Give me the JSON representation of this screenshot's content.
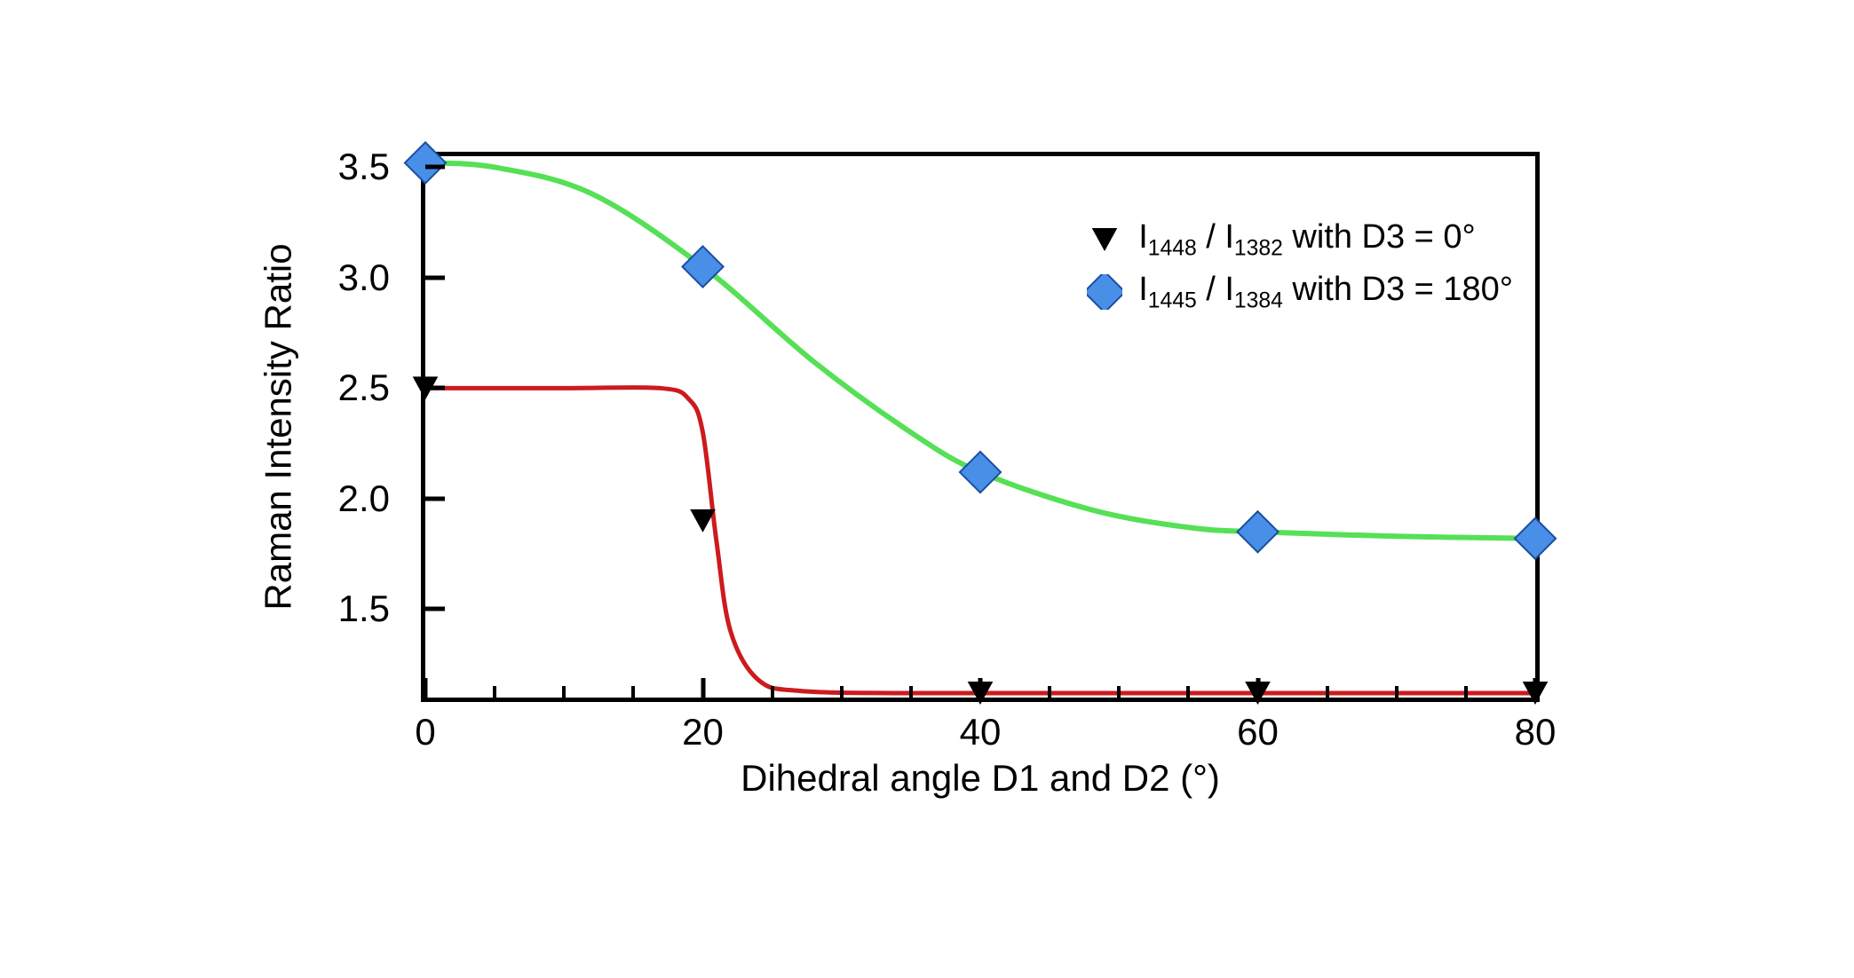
{
  "chart": {
    "type": "line-scatter",
    "background_color": "#ffffff",
    "border_color": "#000000",
    "border_width": 5,
    "x_axis": {
      "label": "Dihedral angle D1 and D2 (°)",
      "min": 0,
      "max": 80,
      "major_ticks": [
        0,
        20,
        40,
        60,
        80
      ],
      "minor_step": 5,
      "label_fontsize": 42,
      "tick_fontsize": 42
    },
    "y_axis": {
      "label": "Raman Intensity Ratio",
      "min": 1.1,
      "max": 3.55,
      "major_ticks": [
        1.5,
        2.0,
        2.5,
        3.0,
        3.5
      ],
      "label_fontsize": 42,
      "tick_fontsize": 42
    },
    "series": [
      {
        "id": "d3_0",
        "legend_html": "I<sub>1448</sub> / I<sub>1382</sub>  with D3 = 0°",
        "marker": "triangle-down",
        "marker_color": "#000000",
        "marker_size": 26,
        "line_color": "#cc1b1e",
        "line_width": 5,
        "points": [
          {
            "x": 0,
            "y": 2.5
          },
          {
            "x": 20,
            "y": 1.9
          },
          {
            "x": 40,
            "y": 1.12
          },
          {
            "x": 60,
            "y": 1.12
          },
          {
            "x": 80,
            "y": 1.12
          }
        ],
        "curve": [
          {
            "x": 0,
            "y": 2.5
          },
          {
            "x": 10,
            "y": 2.5
          },
          {
            "x": 17,
            "y": 2.5
          },
          {
            "x": 19,
            "y": 2.45
          },
          {
            "x": 20,
            "y": 2.3
          },
          {
            "x": 21,
            "y": 1.8
          },
          {
            "x": 22,
            "y": 1.4
          },
          {
            "x": 24,
            "y": 1.18
          },
          {
            "x": 27,
            "y": 1.13
          },
          {
            "x": 35,
            "y": 1.12
          },
          {
            "x": 50,
            "y": 1.12
          },
          {
            "x": 70,
            "y": 1.12
          },
          {
            "x": 80,
            "y": 1.12
          }
        ]
      },
      {
        "id": "d3_180",
        "legend_html": "I<sub>1445</sub> / I<sub>1384</sub>  with D3 = 180°",
        "marker": "diamond",
        "marker_color": "#4a8fe7",
        "marker_stroke": "#1a4fa0",
        "marker_size": 30,
        "line_color": "#55e055",
        "line_width": 6,
        "points": [
          {
            "x": 0,
            "y": 3.52
          },
          {
            "x": 20,
            "y": 3.05
          },
          {
            "x": 40,
            "y": 2.12
          },
          {
            "x": 60,
            "y": 1.85
          },
          {
            "x": 80,
            "y": 1.82
          }
        ],
        "curve": [
          {
            "x": 0,
            "y": 3.52
          },
          {
            "x": 5,
            "y": 3.5
          },
          {
            "x": 12,
            "y": 3.38
          },
          {
            "x": 20,
            "y": 3.05
          },
          {
            "x": 28,
            "y": 2.62
          },
          {
            "x": 35,
            "y": 2.3
          },
          {
            "x": 40,
            "y": 2.12
          },
          {
            "x": 48,
            "y": 1.95
          },
          {
            "x": 55,
            "y": 1.87
          },
          {
            "x": 60,
            "y": 1.85
          },
          {
            "x": 70,
            "y": 1.83
          },
          {
            "x": 80,
            "y": 1.82
          }
        ]
      }
    ]
  }
}
